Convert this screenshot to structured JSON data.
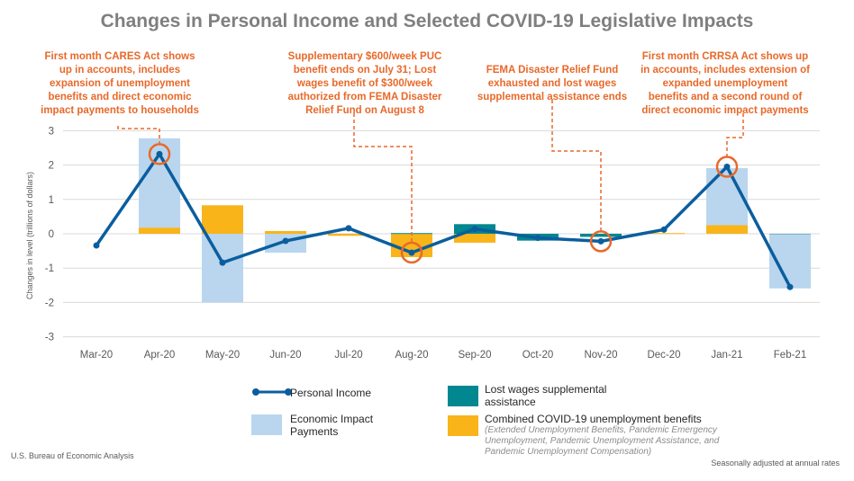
{
  "chart_data": {
    "type": "bar",
    "title": "Changes in Personal Income and Selected COVID-19 Legislative Impacts",
    "ylabel": "Changes in level (trillions of dollars)",
    "xlabel": "",
    "ylim": [
      -3,
      3
    ],
    "yticks": [
      "3",
      "2",
      "1",
      "0",
      "-1",
      "-2",
      "-3"
    ],
    "grid": true,
    "legend_position": "bottom",
    "categories": [
      "Mar-20",
      "Apr-20",
      "May-20",
      "Jun-20",
      "Jul-20",
      "Aug-20",
      "Sep-20",
      "Oct-20",
      "Nov-20",
      "Dec-20",
      "Jan-21",
      "Feb-21"
    ],
    "series": [
      {
        "name": "Combined COVID-19 unemployment benefits",
        "kind": "stacked-bar",
        "color": "#f9b41a",
        "values": [
          0,
          0.18,
          0.83,
          0.08,
          -0.06,
          -0.68,
          -0.26,
          0,
          0,
          0.02,
          0.25,
          0
        ]
      },
      {
        "name": "Lost wages supplemental assistance",
        "kind": "stacked-bar",
        "color": "#00878f",
        "values": [
          0,
          0,
          0,
          0,
          0,
          0.02,
          0.28,
          -0.2,
          -0.09,
          0,
          0,
          -0.01
        ]
      },
      {
        "name": "Economic Impact Payments",
        "kind": "stacked-bar",
        "color": "#b9d6ee",
        "values": [
          0,
          2.6,
          -2.0,
          -0.55,
          0,
          0,
          0,
          0,
          0,
          0,
          1.66,
          -1.58
        ]
      },
      {
        "name": "Personal Income",
        "kind": "line",
        "color": "#0b5e9e",
        "values": [
          -0.34,
          2.32,
          -0.84,
          -0.21,
          0.16,
          -0.55,
          0.14,
          -0.12,
          -0.22,
          0.12,
          1.95,
          -1.55
        ]
      }
    ],
    "annotations": [
      {
        "category": "Apr-20",
        "text": [
          "First month CARES Act shows",
          "up in accounts, includes",
          "expansion of unemployment",
          "benefits and direct economic",
          "impact payments to households"
        ]
      },
      {
        "category": "Aug-20",
        "text": [
          "Supplementary $600/week PUC",
          "benefit ends on July 31; Lost",
          "wages benefit of $300/week",
          "authorized from FEMA Disaster",
          "Relief Fund on August 8"
        ]
      },
      {
        "category": "Nov-20",
        "text": [
          "FEMA Disaster Relief Fund",
          "exhausted and lost wages",
          "supplemental assistance ends"
        ]
      },
      {
        "category": "Jan-21",
        "text": [
          "First month CRRSA Act shows up",
          "in accounts, includes extension of",
          "expanded unemployment",
          "benefits and a second round of",
          "direct economic impact payments"
        ]
      }
    ],
    "annotation_color": "#e8692a"
  },
  "legend": {
    "personal_income": "Personal Income",
    "eip_1": "Economic Impact",
    "eip_2": "Payments",
    "lost_wages_1": "Lost wages supplemental",
    "lost_wages_2": "assistance",
    "unemployment": "Combined COVID-19 unemployment benefits",
    "unemployment_note_1": "(Extended Unemployment Benefits, Pandemic Emergency",
    "unemployment_note_2": "Unemployment, Pandemic Unemployment Assistance, and",
    "unemployment_note_3": "Pandemic Unemployment Compensation)"
  },
  "source": "U.S. Bureau of Economic Analysis",
  "footnote": "Seasonally adjusted at annual rates"
}
